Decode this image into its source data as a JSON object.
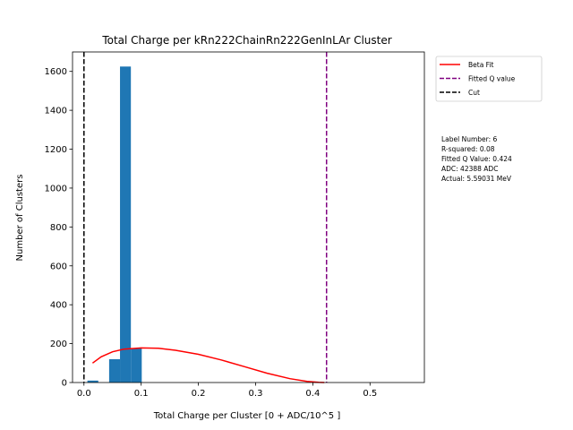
{
  "chart_data": {
    "type": "bar",
    "title": "Total Charge per kRn222ChainRn222GenInLAr Cluster",
    "xlabel": "Total Charge per Cluster [0 + ADC/10^5 ]",
    "ylabel": "Number of Clusters",
    "xlim": [
      -0.02,
      0.595
    ],
    "ylim": [
      0,
      1700
    ],
    "x_ticks": [
      0.0,
      0.1,
      0.2,
      0.3,
      0.4,
      0.5
    ],
    "x_tick_labels": [
      "0.0",
      "0.1",
      "0.2",
      "0.3",
      "0.4",
      "0.5"
    ],
    "y_ticks": [
      0,
      200,
      400,
      600,
      800,
      1000,
      1200,
      1400,
      1600
    ],
    "y_tick_labels": [
      "0",
      "200",
      "400",
      "600",
      "800",
      "1000",
      "1200",
      "1400",
      "1600"
    ],
    "histogram": {
      "color": "#1f77b4",
      "bin_edges": [
        0.006,
        0.025,
        0.044,
        0.063,
        0.082,
        0.101
      ],
      "counts": [
        10,
        0,
        120,
        1625,
        175
      ]
    },
    "beta_fit": {
      "name": "Beta Fit",
      "color": "#ff0000",
      "x": [
        0.015,
        0.03,
        0.05,
        0.07,
        0.1,
        0.13,
        0.16,
        0.2,
        0.24,
        0.28,
        0.32,
        0.36,
        0.39,
        0.41,
        0.42
      ],
      "y": [
        100,
        132,
        158,
        172,
        178,
        176,
        166,
        145,
        116,
        82,
        48,
        20,
        6,
        1,
        0
      ]
    },
    "vlines": [
      {
        "name": "Fitted Q value",
        "x": 0.424,
        "color": "#800080"
      },
      {
        "name": "Cut",
        "x": 0.0,
        "color": "#000000"
      }
    ],
    "legend": {
      "placement": "outside-top-right",
      "entries": [
        {
          "label": "Beta Fit",
          "color": "#ff0000",
          "style": "solid"
        },
        {
          "label": "Fitted Q value",
          "color": "#800080",
          "style": "dashed"
        },
        {
          "label": "Cut",
          "color": "#000000",
          "style": "dashed"
        }
      ]
    },
    "info_lines": [
      "Label Number: 6",
      "R-squared: 0.08",
      "Fitted Q Value: 0.424",
      "ADC: 42388 ADC",
      "Actual: 5.59031 MeV"
    ],
    "grid": false
  }
}
